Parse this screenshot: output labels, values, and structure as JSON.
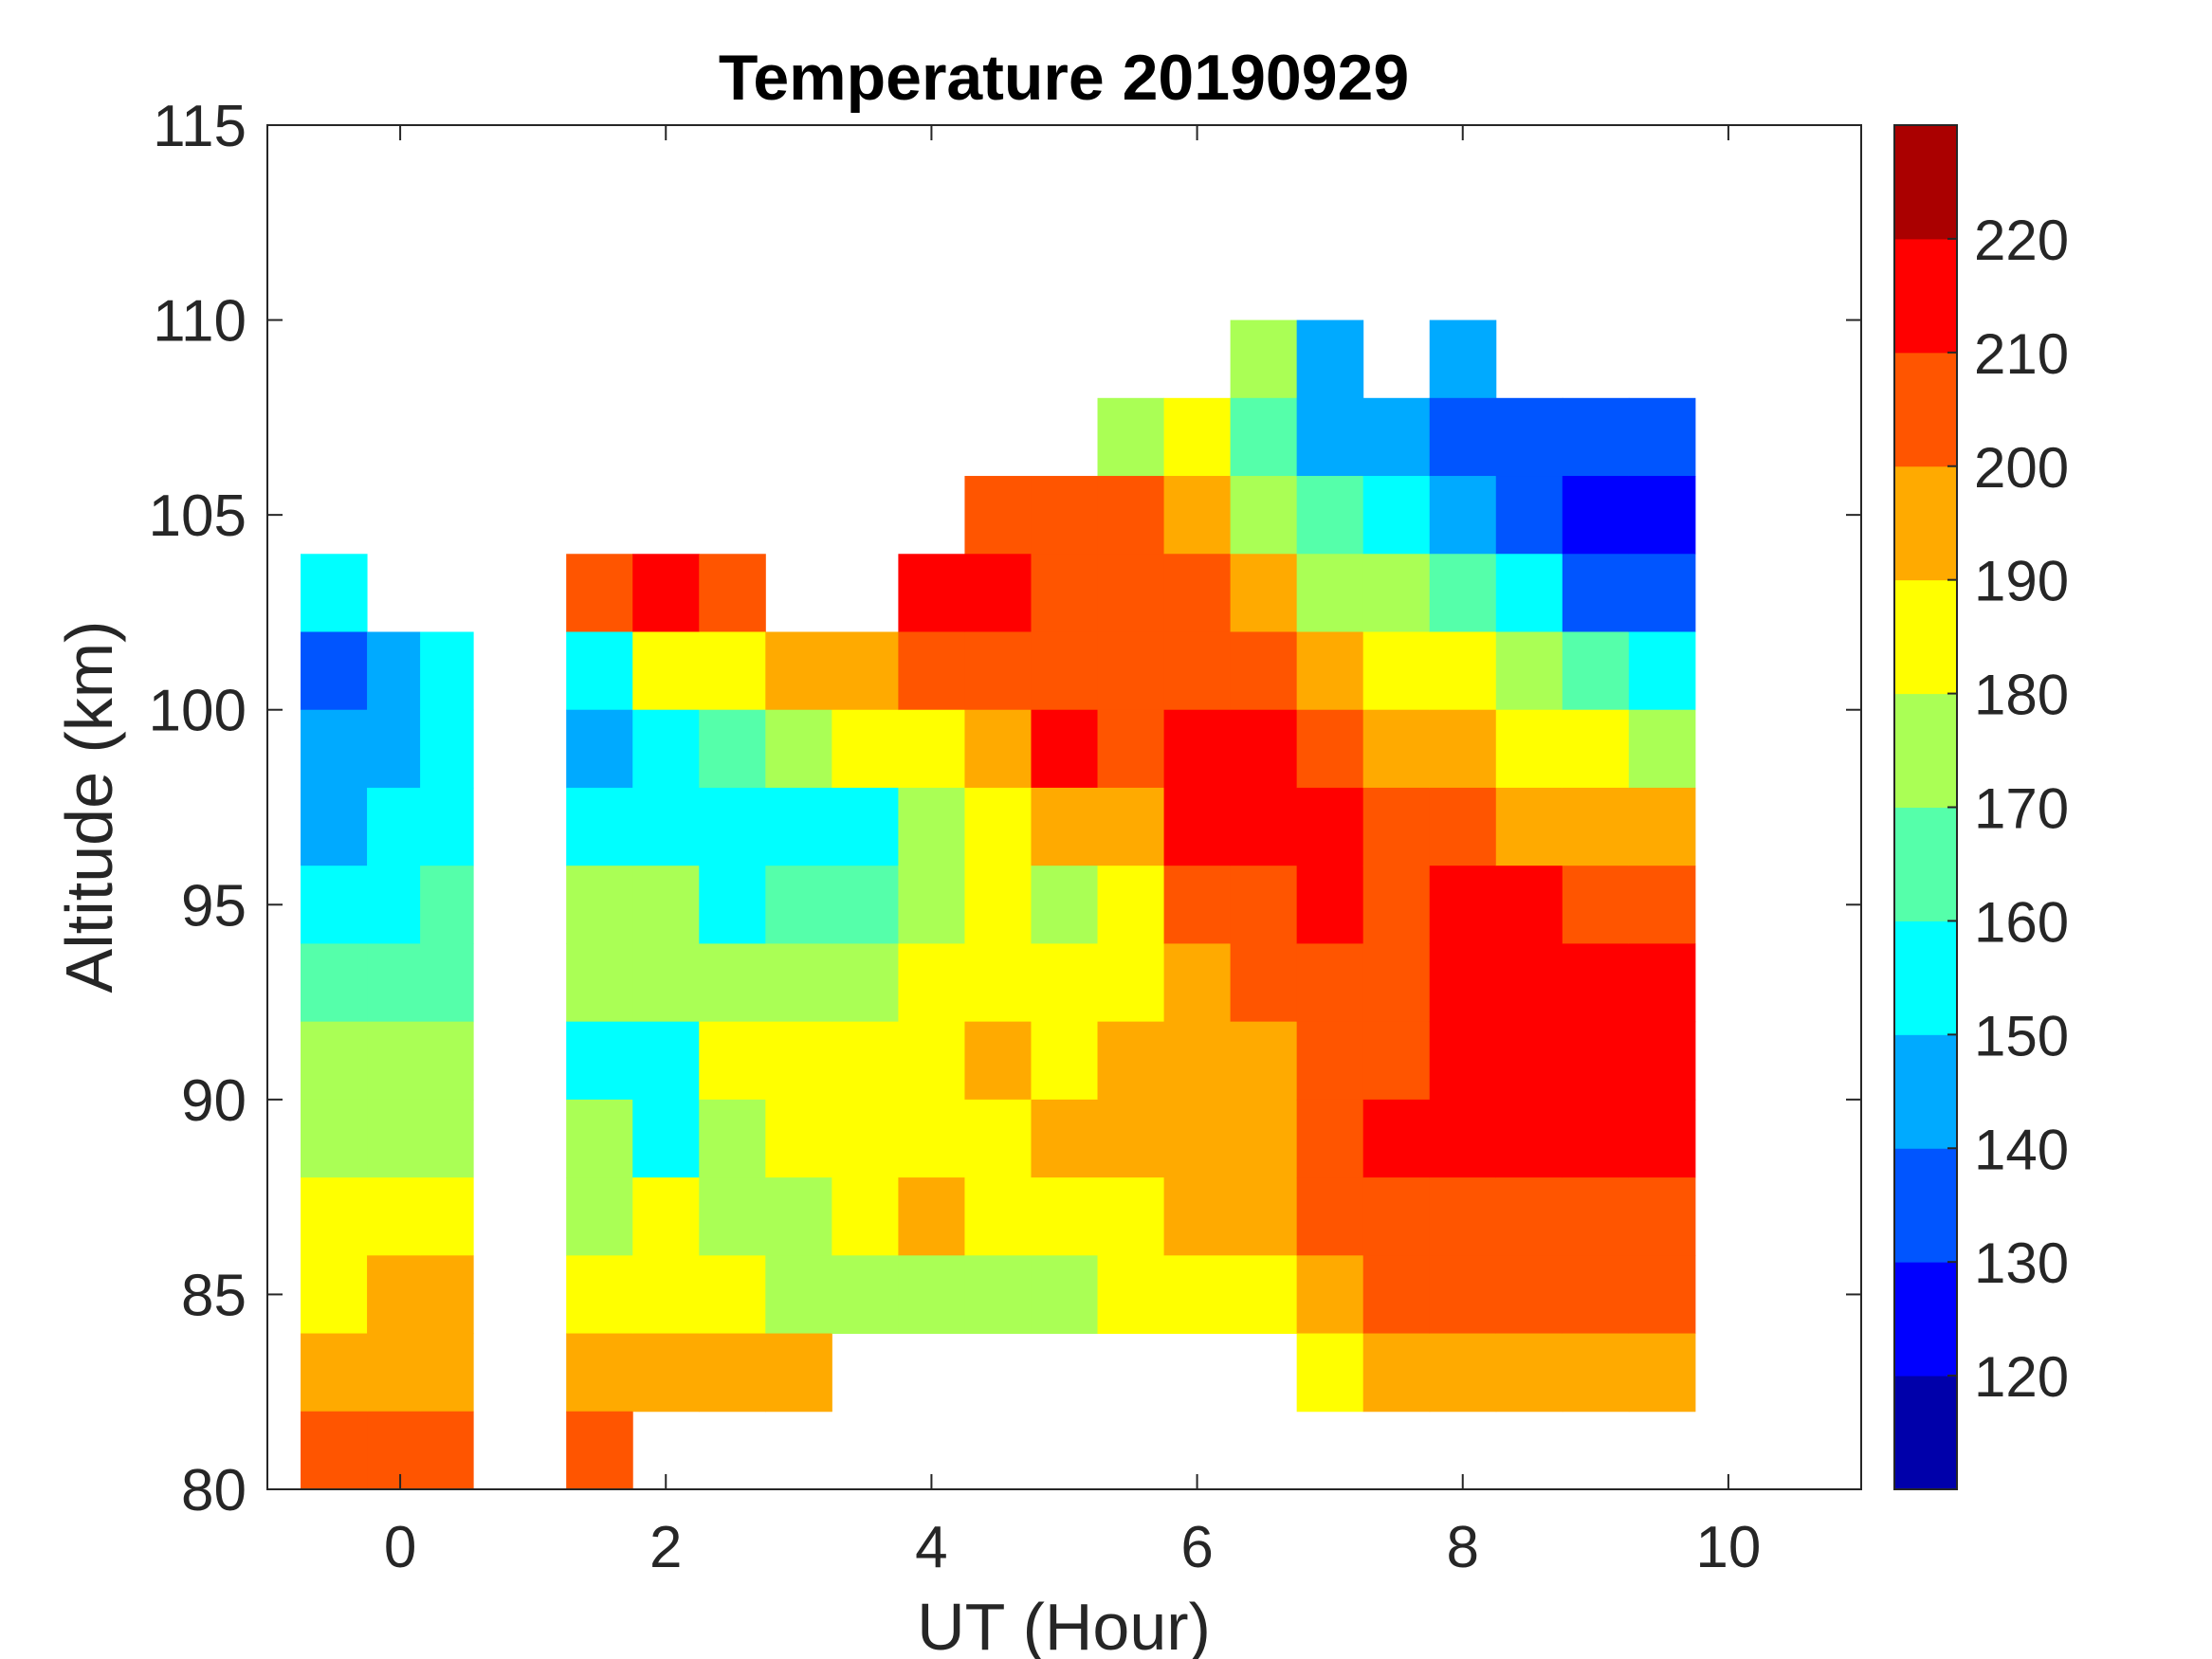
{
  "chart_data": {
    "type": "heatmap",
    "subtype": "filled-contour",
    "title": "Temperature 20190929",
    "xlabel": "UT (Hour)",
    "ylabel": "Altitude (km)",
    "xlim": [
      -1,
      11
    ],
    "ylim": [
      80,
      115
    ],
    "xticks": [
      0,
      2,
      4,
      6,
      8,
      10
    ],
    "yticks": [
      80,
      85,
      90,
      95,
      100,
      105,
      110,
      115
    ],
    "grid": false,
    "colorbar": {
      "position": "right",
      "range": [
        110,
        230
      ],
      "levels": [
        110,
        120,
        130,
        140,
        150,
        160,
        170,
        180,
        190,
        200,
        210,
        220,
        230
      ],
      "ticks": [
        120,
        130,
        140,
        150,
        160,
        170,
        180,
        190,
        200,
        210,
        220
      ],
      "colors": [
        "#0000AA",
        "#0000FF",
        "#0055FF",
        "#00AAFF",
        "#00FFFF",
        "#55FFAA",
        "#AAFF55",
        "#FFFF00",
        "#FFAA00",
        "#FF5500",
        "#FF0000",
        "#AA0000"
      ]
    },
    "x": [
      -0.5,
      0,
      0.3,
      1.5,
      2,
      2.5,
      3,
      3.5,
      4,
      4.5,
      5,
      5.5,
      6,
      6.5,
      7,
      7.5,
      8,
      8.5,
      9,
      9.5
    ],
    "y": [
      109,
      107,
      105,
      103,
      101,
      99,
      97,
      95,
      93,
      91,
      89,
      87,
      85,
      83,
      81
    ],
    "y_step": 2,
    "values": [
      [
        null,
        null,
        null,
        150,
        135,
        145,
        145,
        155,
        165,
        175,
        175,
        185,
        185,
        195,
        205
      ],
      [
        null,
        null,
        null,
        null,
        140,
        145,
        150,
        155,
        165,
        175,
        175,
        185,
        195,
        195,
        205
      ],
      [
        null,
        null,
        null,
        null,
        150,
        155,
        155,
        160,
        165,
        175,
        175,
        185,
        195,
        195,
        205
      ],
      [
        null,
        null,
        null,
        205,
        155,
        145,
        155,
        175,
        175,
        155,
        175,
        175,
        185,
        195,
        205
      ],
      [
        null,
        null,
        null,
        215,
        185,
        155,
        155,
        175,
        175,
        155,
        155,
        185,
        185,
        195,
        null
      ],
      [
        null,
        null,
        null,
        205,
        185,
        165,
        155,
        155,
        175,
        185,
        175,
        175,
        185,
        195,
        null
      ],
      [
        null,
        null,
        null,
        null,
        195,
        175,
        155,
        165,
        175,
        185,
        185,
        175,
        175,
        195,
        null
      ],
      [
        null,
        null,
        null,
        null,
        195,
        185,
        155,
        165,
        175,
        185,
        185,
        185,
        175,
        null,
        null
      ],
      [
        null,
        null,
        null,
        215,
        205,
        185,
        175,
        175,
        185,
        185,
        185,
        195,
        175,
        null,
        null
      ],
      [
        null,
        null,
        205,
        215,
        205,
        195,
        185,
        185,
        185,
        195,
        185,
        185,
        175,
        null,
        null
      ],
      [
        null,
        null,
        205,
        205,
        205,
        215,
        195,
        175,
        185,
        185,
        195,
        185,
        175,
        null,
        null
      ],
      [
        null,
        175,
        205,
        205,
        205,
        205,
        195,
        185,
        185,
        195,
        195,
        185,
        185,
        null,
        null
      ],
      [
        null,
        185,
        195,
        205,
        205,
        215,
        215,
        205,
        195,
        195,
        195,
        195,
        185,
        null,
        null
      ],
      [
        175,
        165,
        175,
        195,
        205,
        215,
        215,
        205,
        205,
        195,
        195,
        195,
        185,
        null,
        null
      ],
      [
        145,
        145,
        165,
        175,
        195,
        205,
        215,
        215,
        205,
        205,
        205,
        205,
        195,
        185,
        null
      ],
      [
        null,
        145,
        155,
        175,
        185,
        195,
        205,
        205,
        205,
        205,
        215,
        205,
        205,
        195,
        null
      ],
      [
        145,
        135,
        145,
        165,
        185,
        195,
        205,
        215,
        215,
        215,
        215,
        205,
        205,
        195,
        null
      ],
      [
        null,
        135,
        135,
        155,
        175,
        185,
        195,
        215,
        215,
        215,
        215,
        205,
        205,
        195,
        null
      ],
      [
        null,
        135,
        125,
        135,
        165,
        185,
        195,
        205,
        215,
        215,
        215,
        205,
        205,
        195,
        null
      ],
      [
        null,
        135,
        125,
        135,
        155,
        175,
        195,
        205,
        215,
        215,
        215,
        205,
        205,
        195,
        null
      ]
    ]
  }
}
